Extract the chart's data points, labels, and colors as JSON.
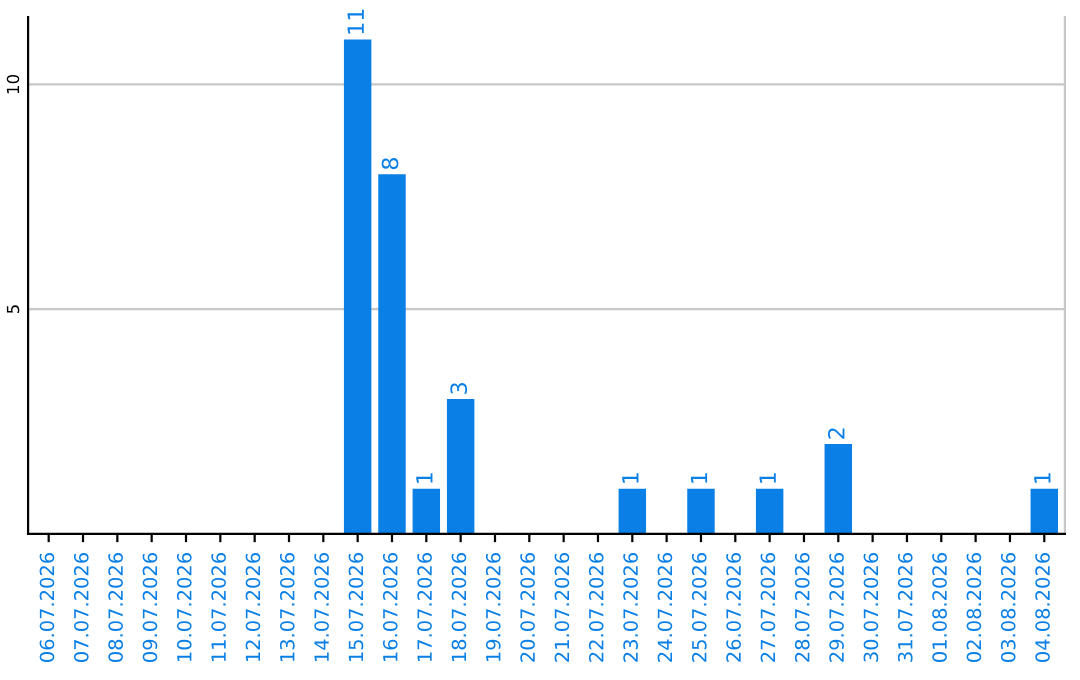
{
  "chart_data": {
    "type": "bar",
    "categories": [
      "06.07.2026",
      "07.07.2026",
      "08.07.2026",
      "09.07.2026",
      "10.07.2026",
      "11.07.2026",
      "12.07.2026",
      "13.07.2026",
      "14.07.2026",
      "15.07.2026",
      "16.07.2026",
      "17.07.2026",
      "18.07.2026",
      "19.07.2026",
      "20.07.2026",
      "21.07.2026",
      "22.07.2026",
      "23.07.2026",
      "24.07.2026",
      "25.07.2026",
      "26.07.2026",
      "27.07.2026",
      "28.07.2026",
      "29.07.2026",
      "30.07.2026",
      "31.07.2026",
      "01.08.2026",
      "02.08.2026",
      "03.08.2026",
      "04.08.2026"
    ],
    "values": [
      0,
      0,
      0,
      0,
      0,
      0,
      0,
      0,
      0,
      11,
      8,
      1,
      3,
      0,
      0,
      0,
      0,
      1,
      0,
      1,
      0,
      1,
      0,
      2,
      0,
      0,
      0,
      0,
      0,
      1
    ],
    "value_labels": [
      null,
      null,
      null,
      null,
      null,
      null,
      null,
      null,
      null,
      "11",
      "8",
      "1",
      "3",
      null,
      null,
      null,
      null,
      "1",
      null,
      "1",
      null,
      "1",
      null,
      "2",
      null,
      null,
      null,
      null,
      null,
      "1"
    ],
    "color": "#0a7fe6",
    "ylim": [
      0,
      11.5
    ],
    "yticks": [
      5,
      10
    ],
    "grid": "y"
  }
}
